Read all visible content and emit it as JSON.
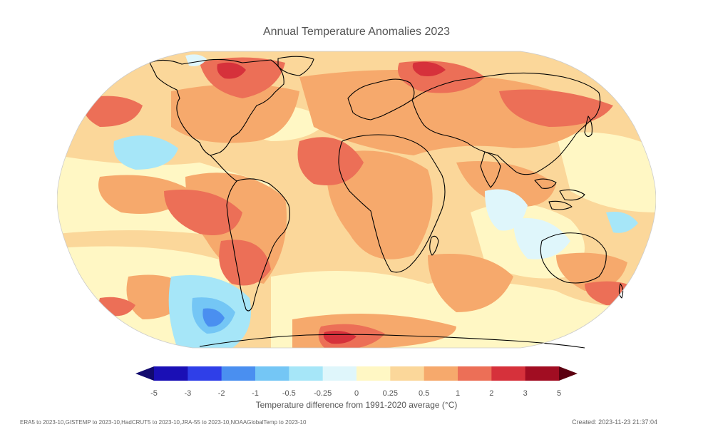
{
  "title": "Annual Temperature Anomalies 2023",
  "colorbar": {
    "colors": [
      "#1a0fb5",
      "#2f3fe8",
      "#4a8ff0",
      "#74c6f5",
      "#a6e6f8",
      "#dff6fb",
      "#fff7c4",
      "#fbd79a",
      "#f6a96c",
      "#ec6f57",
      "#d6313b",
      "#a10d22"
    ],
    "under_color": "#120a6e",
    "over_color": "#5c0010",
    "ticks": [
      "-5",
      "-3",
      "-2",
      "-1",
      "-0.5",
      "-0.25",
      "0",
      "0.25",
      "0.5",
      "1",
      "2",
      "3",
      "5"
    ],
    "label": "Temperature difference from 1991-2020 average (°C)"
  },
  "footer": {
    "sources": "ERA5 to 2023-10,GISTEMP to 2023-10,HadCRUT5 to 2023-10,JRA-55 to 2023-10,NOAAGlobalTemp to 2023-10",
    "created": "Created: 2023-11-23 21:37:04"
  }
}
